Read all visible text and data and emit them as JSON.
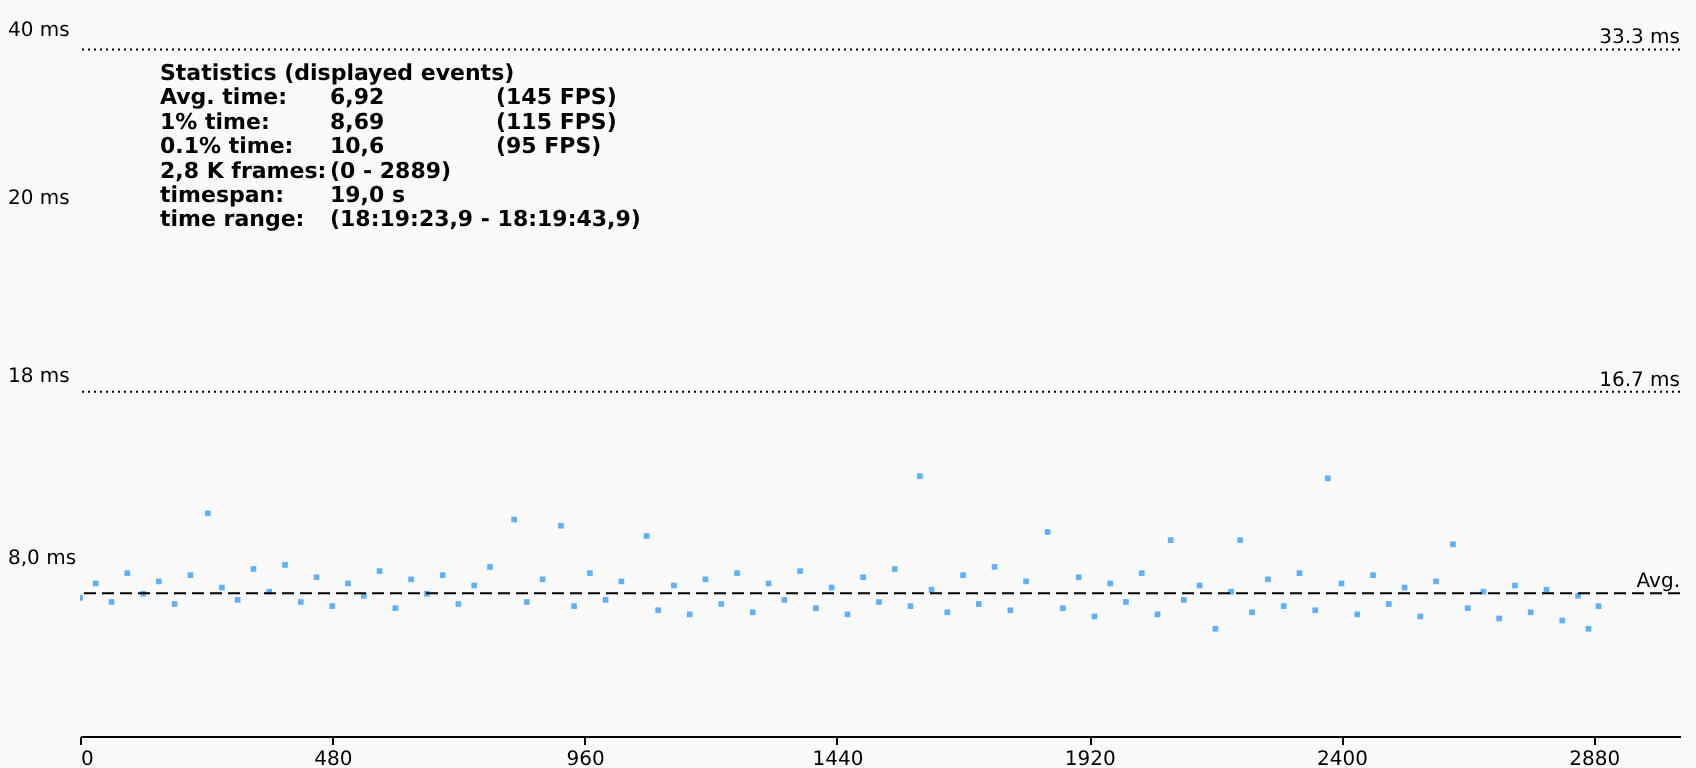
{
  "chart_data": {
    "type": "scatter",
    "marker": "square",
    "grid": false,
    "xlim": [
      0,
      3044
    ],
    "xticks": [
      0,
      480,
      960,
      1440,
      1920,
      2400,
      2880
    ],
    "ylim": [
      0,
      35.7
    ],
    "ref_lines": [
      {
        "axis": "y",
        "value": 33.3,
        "label": "33.3 ms",
        "line_style": "dotted",
        "color": "#000000"
      },
      {
        "axis": "y",
        "value": 16.7,
        "label": "16.7 ms",
        "line_style": "dotted",
        "color": "#000000"
      },
      {
        "axis": "y",
        "value": 6.92,
        "label": "Avg.",
        "line_style": "dashed",
        "color": "#000000"
      }
    ],
    "annotations": [
      "40 ms",
      "20 ms",
      "18 ms",
      "8,0 ms",
      "Statistics (displayed events)",
      "Avg. time:\t6,92\t(145 FPS)",
      "1% time:\t8,69\t(115 FPS)",
      "0.1% time:\t10,6\t(95 FPS)",
      "2,8 K frames:\t(0 - 2889)",
      "timespan:\t19,0 s",
      "time range:\t(18:19:23,9 - 18:19:43,9)"
    ],
    "series": [
      {
        "color": "#1e90ff",
        "x": [
          0,
          30,
          60,
          90,
          120,
          150,
          180,
          210,
          243,
          270,
          300,
          330,
          360,
          390,
          420,
          450,
          480,
          510,
          540,
          570,
          600,
          630,
          660,
          690,
          720,
          750,
          780,
          826,
          850,
          880,
          915,
          940,
          970,
          1000,
          1030,
          1078,
          1100,
          1130,
          1160,
          1190,
          1220,
          1250,
          1280,
          1310,
          1340,
          1370,
          1400,
          1430,
          1460,
          1490,
          1520,
          1550,
          1580,
          1598,
          1620,
          1650,
          1680,
          1710,
          1740,
          1770,
          1800,
          1841,
          1870,
          1900,
          1930,
          1960,
          1990,
          2020,
          2050,
          2075,
          2100,
          2130,
          2160,
          2190,
          2207,
          2230,
          2260,
          2290,
          2320,
          2350,
          2374,
          2400,
          2430,
          2460,
          2490,
          2520,
          2550,
          2580,
          2612,
          2640,
          2670,
          2700,
          2730,
          2760,
          2790,
          2820,
          2850,
          2870,
          2889
        ],
        "values": [
          6.7,
          7.4,
          6.5,
          7.9,
          6.9,
          7.5,
          6.4,
          7.8,
          10.8,
          7.2,
          6.6,
          8.1,
          7.0,
          8.3,
          6.5,
          7.7,
          6.3,
          7.4,
          6.8,
          8.0,
          6.2,
          7.6,
          6.9,
          7.8,
          6.4,
          7.3,
          8.2,
          10.5,
          6.5,
          7.6,
          10.2,
          6.3,
          7.9,
          6.6,
          7.5,
          9.7,
          6.1,
          7.3,
          5.9,
          7.6,
          6.4,
          7.9,
          6.0,
          7.4,
          6.6,
          8.0,
          6.2,
          7.2,
          5.9,
          7.7,
          6.5,
          8.1,
          6.3,
          12.6,
          7.1,
          6.0,
          7.8,
          6.4,
          8.2,
          6.1,
          7.5,
          9.9,
          6.2,
          7.7,
          5.8,
          7.4,
          6.5,
          7.9,
          5.9,
          9.5,
          6.6,
          7.3,
          5.2,
          7.0,
          9.5,
          6.0,
          7.6,
          6.3,
          7.9,
          6.1,
          12.5,
          7.4,
          5.9,
          7.8,
          6.4,
          7.2,
          5.8,
          7.5,
          9.3,
          6.2,
          7.0,
          5.7,
          7.3,
          6.0,
          7.1,
          5.6,
          6.8,
          5.2,
          6.3
        ]
      }
    ]
  }
}
